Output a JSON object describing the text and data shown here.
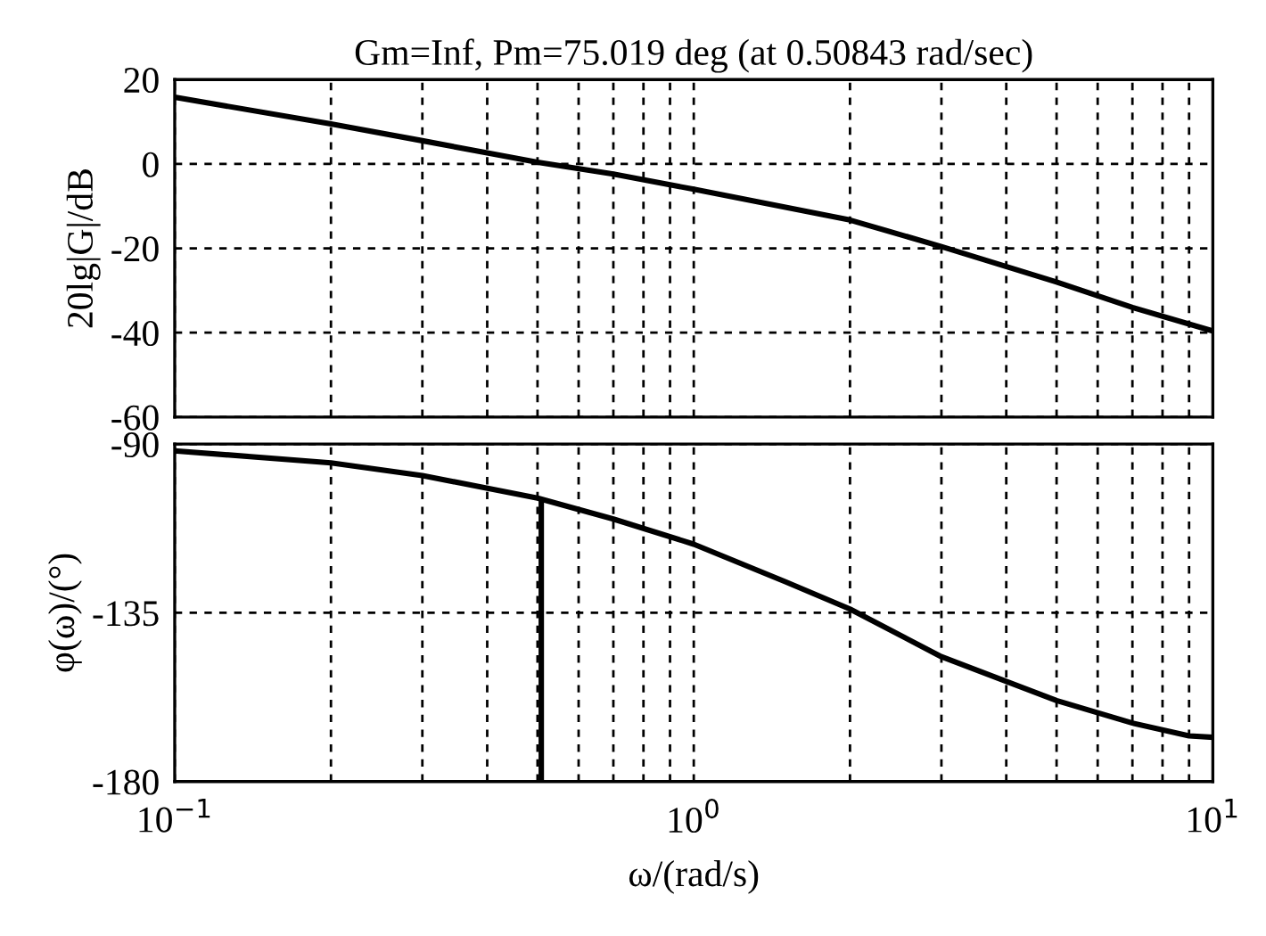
{
  "chart_data": [
    {
      "type": "line",
      "title": "Gm=Inf, Pm=75.019 deg (at 0.50843 rad/sec)",
      "ylabel": "20lg|G|/dB",
      "x": [
        0.1,
        0.2,
        0.3,
        0.4,
        0.5,
        0.7,
        1.0,
        2.0,
        3.0,
        5.0,
        7.0,
        10.0
      ],
      "series": [
        {
          "color": "#000000",
          "values": [
            15.8,
            9.5,
            5.5,
            2.6,
            0.4,
            -2.4,
            -6,
            -13.3,
            -19.6,
            -28,
            -34,
            -39.6
          ]
        }
      ],
      "log": "x",
      "xlim": [
        0.1,
        10
      ],
      "ylim": [
        -60,
        20
      ],
      "yticks": [
        -60,
        -40,
        -20,
        0,
        20
      ],
      "xticks": [
        {
          "value": 0.1,
          "label": null
        },
        {
          "value": 0.2,
          "label": null
        },
        {
          "value": 0.3,
          "label": null
        },
        {
          "value": 0.4,
          "label": null
        },
        {
          "value": 0.5,
          "label": null
        },
        {
          "value": 0.6,
          "label": null
        },
        {
          "value": 0.7,
          "label": null
        },
        {
          "value": 0.8,
          "label": null
        },
        {
          "value": 0.9,
          "label": null
        },
        {
          "value": 1,
          "label": null
        },
        {
          "value": 2,
          "label": null
        },
        {
          "value": 3,
          "label": null
        },
        {
          "value": 4,
          "label": null
        },
        {
          "value": 5,
          "label": null
        },
        {
          "value": 6,
          "label": null
        },
        {
          "value": 7,
          "label": null
        },
        {
          "value": 8,
          "label": null
        },
        {
          "value": 9,
          "label": null
        },
        {
          "value": 10,
          "label": null
        }
      ],
      "tick_labels": "y",
      "grid": true,
      "line_style": "solid",
      "marker": "none"
    },
    {
      "type": "line",
      "ylabel": "φ(ω)/(°)",
      "xlabel": "ω/(rad/s)",
      "x": [
        0.1,
        0.2,
        0.3,
        0.5,
        0.7,
        1.0,
        1.5,
        2.0,
        3.0,
        5.0,
        7.0,
        9.0,
        10.0
      ],
      "series": [
        {
          "color": "#000000",
          "values": [
            -91.8,
            -95,
            -98.4,
            -104.4,
            -110,
            -116.7,
            -126.7,
            -134,
            -146.7,
            -158.4,
            -164.4,
            -167.8,
            -168.2
          ]
        },
        {
          "color": "#000000",
          "x": [
            0.50843,
            0.50843
          ],
          "values": [
            -180,
            -105
          ]
        }
      ],
      "log": "x",
      "xlim": [
        0.1,
        10
      ],
      "ylim": [
        -180,
        -90
      ],
      "yticks": [
        -180,
        -135,
        -90
      ],
      "xticks": [
        {
          "value": 0.1,
          "label": "10$^{−1}$"
        },
        {
          "value": 0.2,
          "label": null
        },
        {
          "value": 0.3,
          "label": null
        },
        {
          "value": 0.4,
          "label": null
        },
        {
          "value": 0.5,
          "label": null
        },
        {
          "value": 0.6,
          "label": null
        },
        {
          "value": 0.7,
          "label": null
        },
        {
          "value": 0.8,
          "label": null
        },
        {
          "value": 0.9,
          "label": null
        },
        {
          "value": 1,
          "label": "10$^{0}$"
        },
        {
          "value": 2,
          "label": null
        },
        {
          "value": 3,
          "label": null
        },
        {
          "value": 4,
          "label": null
        },
        {
          "value": 5,
          "label": null
        },
        {
          "value": 6,
          "label": null
        },
        {
          "value": 7,
          "label": null
        },
        {
          "value": 8,
          "label": null
        },
        {
          "value": 9,
          "label": null
        },
        {
          "value": 10,
          "label": "10$^{1}$"
        }
      ],
      "grid": true,
      "line_style": "solid",
      "marker": "none"
    }
  ]
}
